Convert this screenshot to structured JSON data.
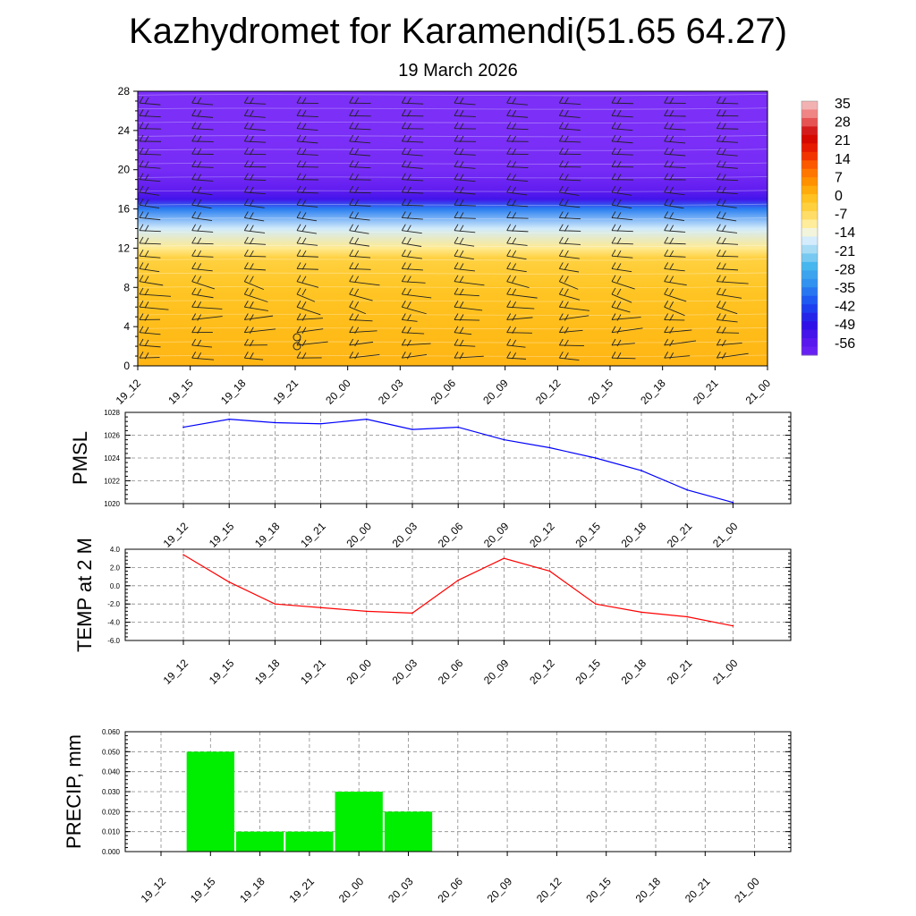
{
  "title": "Kazhydromet for Karamendi(51.65 64.27)",
  "subtitle": "19 March 2026",
  "colors": {
    "pmsl_line": "#0000ff",
    "temp_line": "#ff0000",
    "precip_bar": "#00ee00",
    "grid": "#888888"
  },
  "chart_data": [
    {
      "name": "vertical_profile",
      "type": "heatmap",
      "x": [
        "19_12",
        "19_15",
        "19_18",
        "19_21",
        "20_00",
        "20_03",
        "20_06",
        "20_09",
        "20_12",
        "20_15",
        "20_18",
        "20_21",
        "21_00"
      ],
      "ylim": [
        0,
        28
      ],
      "yticks": [
        0,
        4,
        8,
        12,
        16,
        20,
        24,
        28
      ],
      "temperature_profile": {
        "levels": [
          0,
          4,
          8,
          11,
          12,
          14,
          16,
          17,
          18,
          20,
          24,
          28
        ],
        "values": [
          4,
          3,
          1,
          -2,
          -8,
          -16,
          -36,
          -54,
          -60,
          -65,
          -66,
          -67
        ]
      },
      "colorbar": {
        "labels": [
          "35",
          "28",
          "21",
          "14",
          "7",
          "0",
          "-7",
          "-14",
          "-21",
          "-28",
          "-35",
          "-42",
          "-49",
          "-56"
        ],
        "range": [
          -63,
          42
        ]
      },
      "wind_barbs": true
    },
    {
      "name": "pmsl",
      "type": "line",
      "ylabel": "PMSL",
      "x": [
        "19_12",
        "19_15",
        "19_18",
        "19_21",
        "20_00",
        "20_03",
        "20_06",
        "20_09",
        "20_12",
        "20_15",
        "20_18",
        "20_21",
        "21_00"
      ],
      "values": [
        1026.7,
        1027.4,
        1027.1,
        1027.0,
        1027.4,
        1026.5,
        1026.7,
        1025.6,
        1024.9,
        1024.0,
        1022.9,
        1021.2,
        1020.1
      ],
      "ylim": [
        1020,
        1028
      ],
      "yticks": [
        "1020",
        "1022",
        "1024",
        "1026",
        "1028"
      ]
    },
    {
      "name": "temp2m",
      "type": "line",
      "ylabel": "TEMP at 2 M",
      "x": [
        "19_12",
        "19_15",
        "19_18",
        "19_21",
        "20_00",
        "20_03",
        "20_06",
        "20_09",
        "20_12",
        "20_15",
        "20_18",
        "20_21",
        "21_00"
      ],
      "values": [
        3.4,
        0.4,
        -2.0,
        -2.4,
        -2.8,
        -3.0,
        0.6,
        3.0,
        1.6,
        -2.0,
        -2.9,
        -3.4,
        -4.4
      ],
      "ylim": [
        -6,
        4
      ],
      "yticks": [
        "-6.0",
        "-4.0",
        "-2.0",
        "0.0",
        "2.0",
        "4.0"
      ]
    },
    {
      "name": "precip",
      "type": "bar",
      "ylabel": "PRECIP, mm",
      "x": [
        "19_12",
        "19_15",
        "19_18",
        "19_21",
        "20_00",
        "20_03",
        "20_06",
        "20_09",
        "20_12",
        "20_15",
        "20_18",
        "20_21",
        "21_00"
      ],
      "values": [
        0,
        0.05,
        0.01,
        0.01,
        0.03,
        0.02,
        0,
        0,
        0,
        0,
        0,
        0,
        0
      ],
      "ylim": [
        0,
        0.06
      ],
      "yticks": [
        "0.000",
        "0.010",
        "0.020",
        "0.030",
        "0.040",
        "0.050",
        "0.060"
      ]
    }
  ]
}
